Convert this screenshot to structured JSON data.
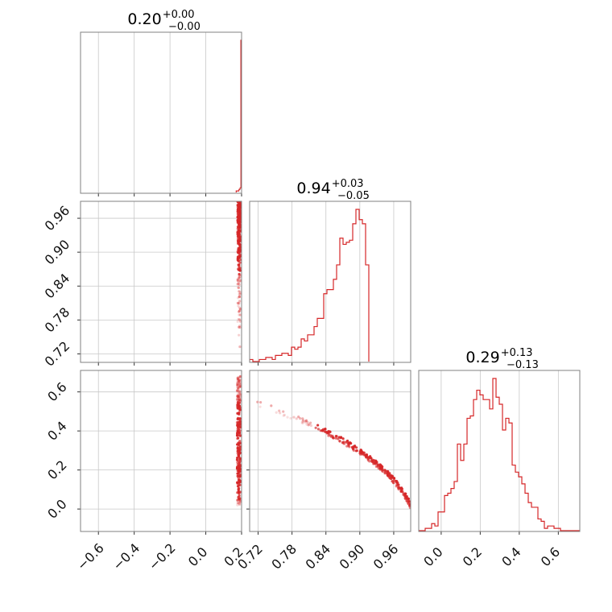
{
  "figure": {
    "type": "corner-plot",
    "color": "#d62728"
  },
  "chart_data": [
    {
      "type": "histogram",
      "panel": "p00",
      "title": {
        "median": "0.20",
        "plus": "+0.00",
        "minus": "−0.00"
      },
      "xlim": [
        -0.7,
        0.2
      ],
      "x_ticks": [
        -0.6,
        -0.4,
        -0.2,
        0.0,
        0.2
      ],
      "bins": [
        [
          0.17,
          0.01
        ],
        [
          0.18,
          0.01
        ],
        [
          0.186,
          0.02
        ],
        [
          0.192,
          0.03
        ],
        [
          0.196,
          1.0
        ],
        [
          0.199,
          1.0
        ]
      ]
    },
    {
      "type": "scatter",
      "panel": "p10",
      "xlim": [
        -0.7,
        0.2
      ],
      "ylim": [
        0.705,
        0.99
      ],
      "y_tick_labels": [
        "0.72",
        "0.78",
        "0.84",
        "0.90",
        "0.96"
      ],
      "x_ticks": [
        -0.6,
        -0.4,
        -0.2,
        0.0,
        0.2
      ],
      "y_ticks": [
        0.72,
        0.78,
        0.84,
        0.9,
        0.96
      ]
    },
    {
      "type": "histogram",
      "panel": "p11",
      "title": {
        "median": "0.94",
        "plus": "+0.03",
        "minus": "−0.05"
      },
      "xlim": [
        0.705,
        0.99
      ],
      "x_ticks": [
        0.72,
        0.78,
        0.84,
        0.9,
        0.96
      ],
      "bin_start": 0.705,
      "bin_width": 0.0057,
      "counts": [
        1,
        0,
        0,
        1,
        1,
        2,
        2,
        1,
        3,
        3,
        4,
        4,
        3,
        7,
        6,
        7,
        11,
        10,
        13,
        13,
        17,
        21,
        21,
        33,
        35,
        35,
        40,
        47,
        60,
        57,
        58,
        59,
        67,
        74,
        69,
        67,
        47
      ]
    },
    {
      "type": "scatter",
      "panel": "p20",
      "xlim": [
        -0.7,
        0.2
      ],
      "ylim": [
        -0.115,
        0.71
      ],
      "y_tick_labels": [
        "0.0",
        "0.2",
        "0.4",
        "0.6"
      ],
      "x_tick_labels": [
        "−0.6",
        "−0.4",
        "−0.2",
        "0.0",
        "0.2"
      ],
      "x_ticks": [
        -0.6,
        -0.4,
        -0.2,
        0.0,
        0.2
      ],
      "y_ticks": [
        0.0,
        0.2,
        0.4,
        0.6
      ]
    },
    {
      "type": "scatter",
      "panel": "p21",
      "xlim": [
        0.705,
        0.99
      ],
      "ylim": [
        -0.115,
        0.71
      ],
      "x_tick_labels": [
        "0.72",
        "0.78",
        "0.84",
        "0.90",
        "0.96"
      ],
      "x_ticks": [
        0.72,
        0.78,
        0.84,
        0.9,
        0.96
      ],
      "y_ticks": [
        0.0,
        0.2,
        0.4,
        0.6
      ]
    },
    {
      "type": "histogram",
      "panel": "p22",
      "title": {
        "median": "0.29",
        "plus": "+0.13",
        "minus": "−0.13"
      },
      "xlim": [
        -0.115,
        0.71
      ],
      "x_tick_labels": [
        "0.0",
        "0.2",
        "0.4",
        "0.6"
      ],
      "x_ticks": [
        0.0,
        0.2,
        0.4,
        0.6
      ],
      "bin_start": -0.115,
      "bin_width": 0.0165,
      "counts": [
        0,
        0,
        1,
        1,
        3,
        2,
        8,
        8,
        15,
        16,
        18,
        21,
        37,
        30,
        37,
        48,
        49,
        56,
        60,
        58,
        56,
        56,
        52,
        65,
        57,
        54,
        43,
        48,
        46,
        28,
        25,
        23,
        20,
        16,
        12,
        10,
        10,
        5,
        4,
        1,
        2,
        2,
        1,
        1,
        0,
        0,
        0,
        0,
        0,
        0
      ]
    }
  ]
}
